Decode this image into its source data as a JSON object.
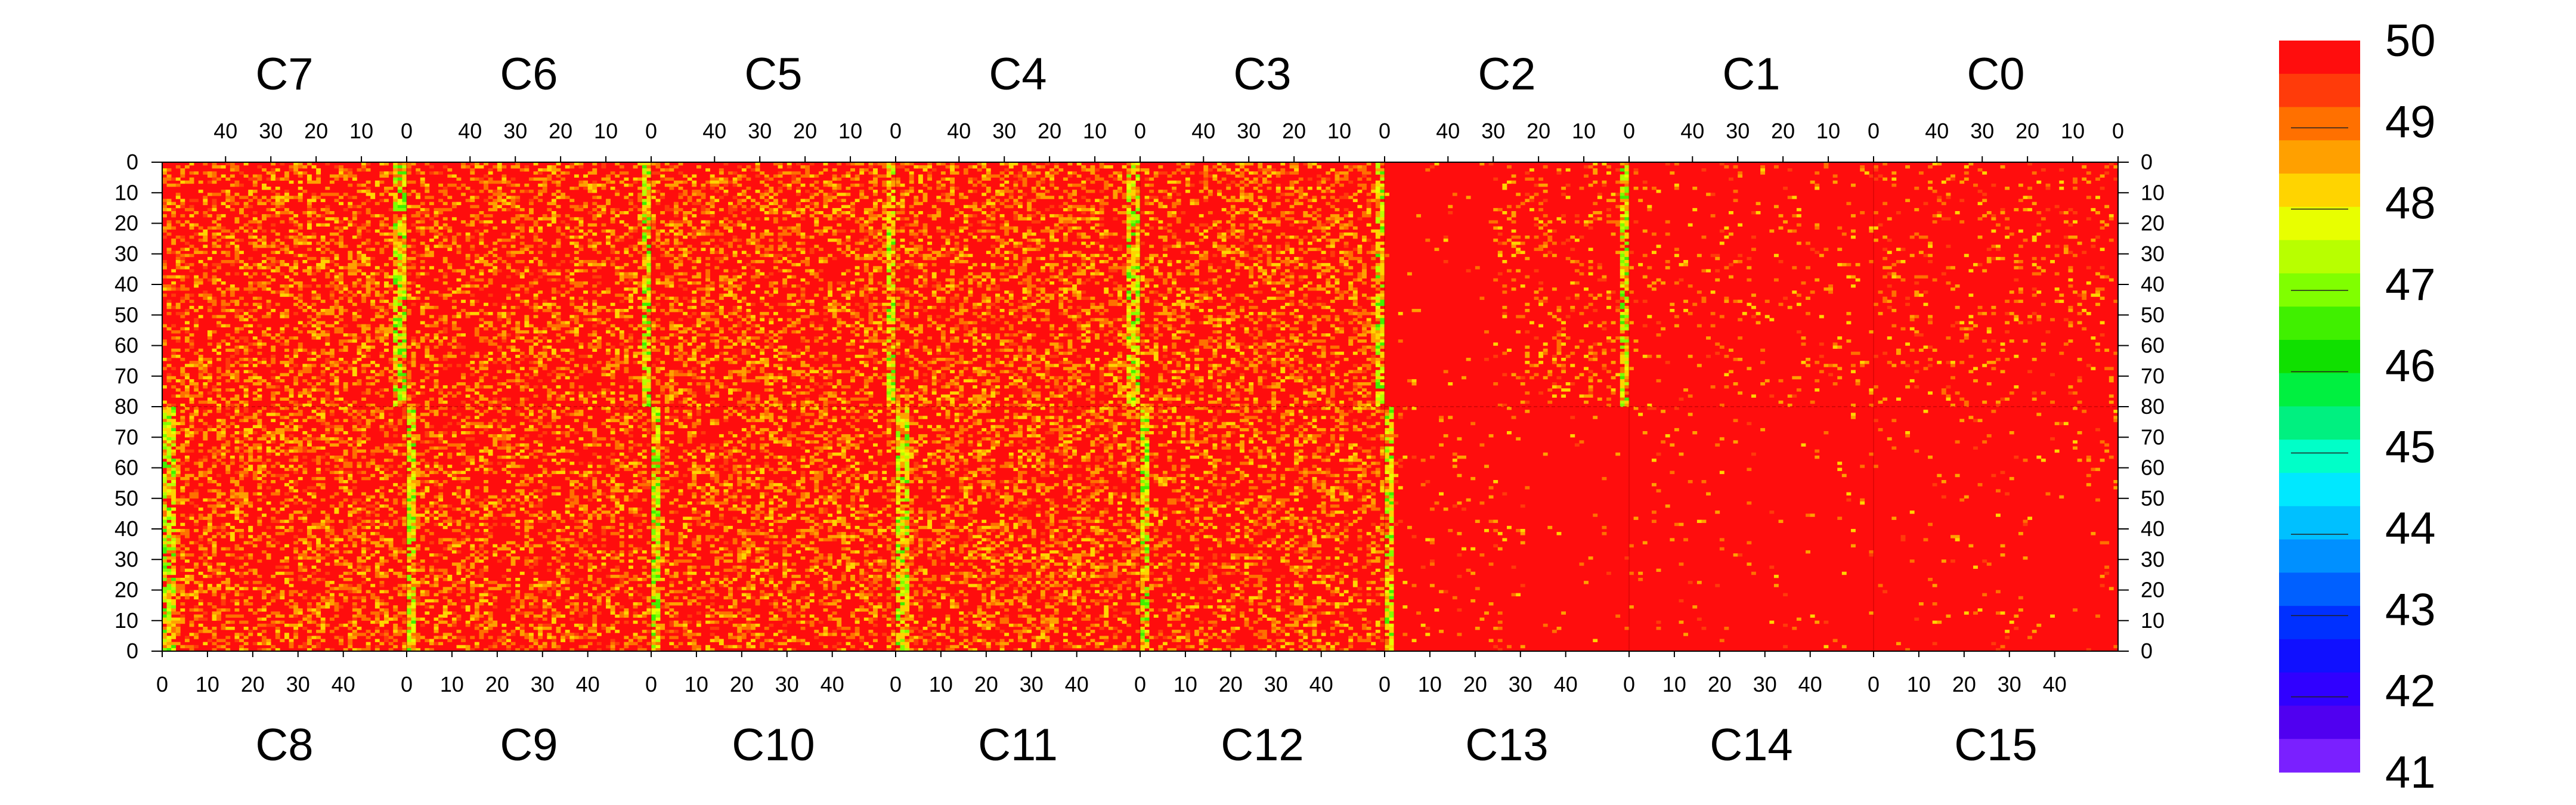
{
  "chart_data": {
    "type": "heatmap",
    "title": "",
    "xlabel": "",
    "ylabel": "",
    "zlim": [
      41,
      50
    ],
    "colorbar": {
      "ticks": [
        "50",
        "49",
        "48",
        "47",
        "46",
        "45",
        "44",
        "43",
        "42",
        "41"
      ],
      "bands": [
        "#ff0d0d",
        "#ff3b0a",
        "#ff7000",
        "#ffa000",
        "#ffd400",
        "#e8ff00",
        "#b8ff00",
        "#80ff00",
        "#40f000",
        "#10e000",
        "#00f040",
        "#00f080",
        "#00ffc8",
        "#00e8ff",
        "#00c0ff",
        "#0090ff",
        "#0060ff",
        "#0030ff",
        "#1010ff",
        "#3000ff",
        "#5000f0",
        "#7a20ff"
      ]
    },
    "top_modules": [
      "C7",
      "C6",
      "C5",
      "C4",
      "C3",
      "C2",
      "C1",
      "C0"
    ],
    "bottom_modules": [
      "C8",
      "C9",
      "C10",
      "C11",
      "C12",
      "C13",
      "C14",
      "C15"
    ],
    "top_x_ticks": [
      "40",
      "30",
      "20",
      "10",
      "0"
    ],
    "bottom_x_ticks": [
      "0",
      "10",
      "20",
      "30",
      "40"
    ],
    "top_y_ticks": [
      "0",
      "10",
      "20",
      "30",
      "40",
      "50",
      "60",
      "70",
      "80"
    ],
    "bottom_y_ticks": [
      "70",
      "60",
      "50",
      "40",
      "30",
      "20",
      "10",
      "0"
    ],
    "module_columns": 54,
    "rows_per_half": 80,
    "module_noise": [
      0.35,
      0.32,
      0.34,
      0.36,
      0.33,
      0.14,
      0.06,
      0.1
    ],
    "module_noise_bottom": [
      0.36,
      0.33,
      0.34,
      0.36,
      0.3,
      0.05,
      0.02,
      0.03
    ],
    "hot_columns": [
      [
        0,
        1,
        2
      ],
      [
        0,
        1
      ],
      [
        0,
        1
      ],
      [
        0,
        1,
        2
      ],
      [
        0,
        1
      ],
      [
        0,
        1
      ],
      [],
      []
    ]
  }
}
